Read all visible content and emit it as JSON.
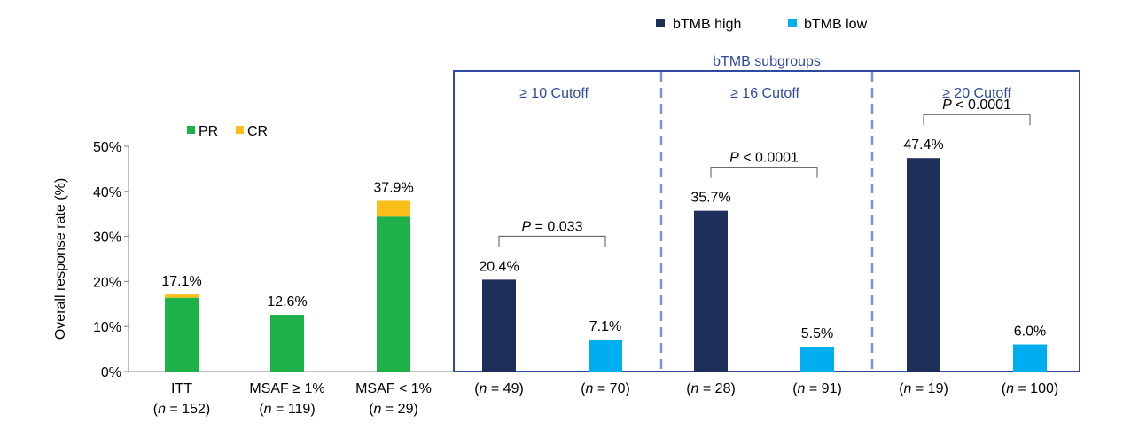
{
  "colors": {
    "pr": "#1fb24a",
    "cr": "#fbbd18",
    "bTMB_high": "#1f2f5c",
    "bTMB_low": "#00aeef",
    "frame": "#2f4aa0",
    "divider": "#7e93d6",
    "axis": "#808080"
  },
  "chart_data": {
    "type": "bar",
    "ylabel": "Overall response rate (%)",
    "ylim": [
      0,
      50
    ],
    "yticks": [
      "0%",
      "10%",
      "20%",
      "30%",
      "40%",
      "50%"
    ],
    "legend_top": [
      "bTMB high",
      "bTMB low"
    ],
    "legend_left": [
      "PR",
      "CR"
    ],
    "subgroup_title": "bTMB subgroups",
    "stacked_bars": [
      {
        "name": "ITT",
        "n_label": "(n = 152)",
        "pr": 16.4,
        "cr": 0.7,
        "total_label": "17.1%"
      },
      {
        "name": "MSAF ≥ 1%",
        "n_label": "(n = 119)",
        "pr": 12.6,
        "cr": 0.0,
        "total_label": "12.6%"
      },
      {
        "name": "MSAF < 1%",
        "n_label": "(n = 29)",
        "pr": 34.4,
        "cr": 3.5,
        "total_label": "37.9%"
      }
    ],
    "groups": [
      {
        "cutoff": "≥ 10 Cutoff",
        "p_value": "P = 0.033",
        "high": {
          "value": 20.4,
          "label": "20.4%",
          "n_label": "(n = 49)"
        },
        "low": {
          "value": 7.1,
          "label": "7.1%",
          "n_label": "(n = 70)"
        }
      },
      {
        "cutoff": "≥ 16 Cutoff",
        "p_value": "P < 0.0001",
        "high": {
          "value": 35.7,
          "label": "35.7%",
          "n_label": "(n = 28)"
        },
        "low": {
          "value": 5.5,
          "label": "5.5%",
          "n_label": "(n = 91)"
        }
      },
      {
        "cutoff": "≥ 20 Cutoff",
        "p_value": "P < 0.0001",
        "high": {
          "value": 47.4,
          "label": "47.4%",
          "n_label": "(n = 19)"
        },
        "low": {
          "value": 6.0,
          "label": "6.0%",
          "n_label": "(n = 100)"
        }
      }
    ]
  }
}
